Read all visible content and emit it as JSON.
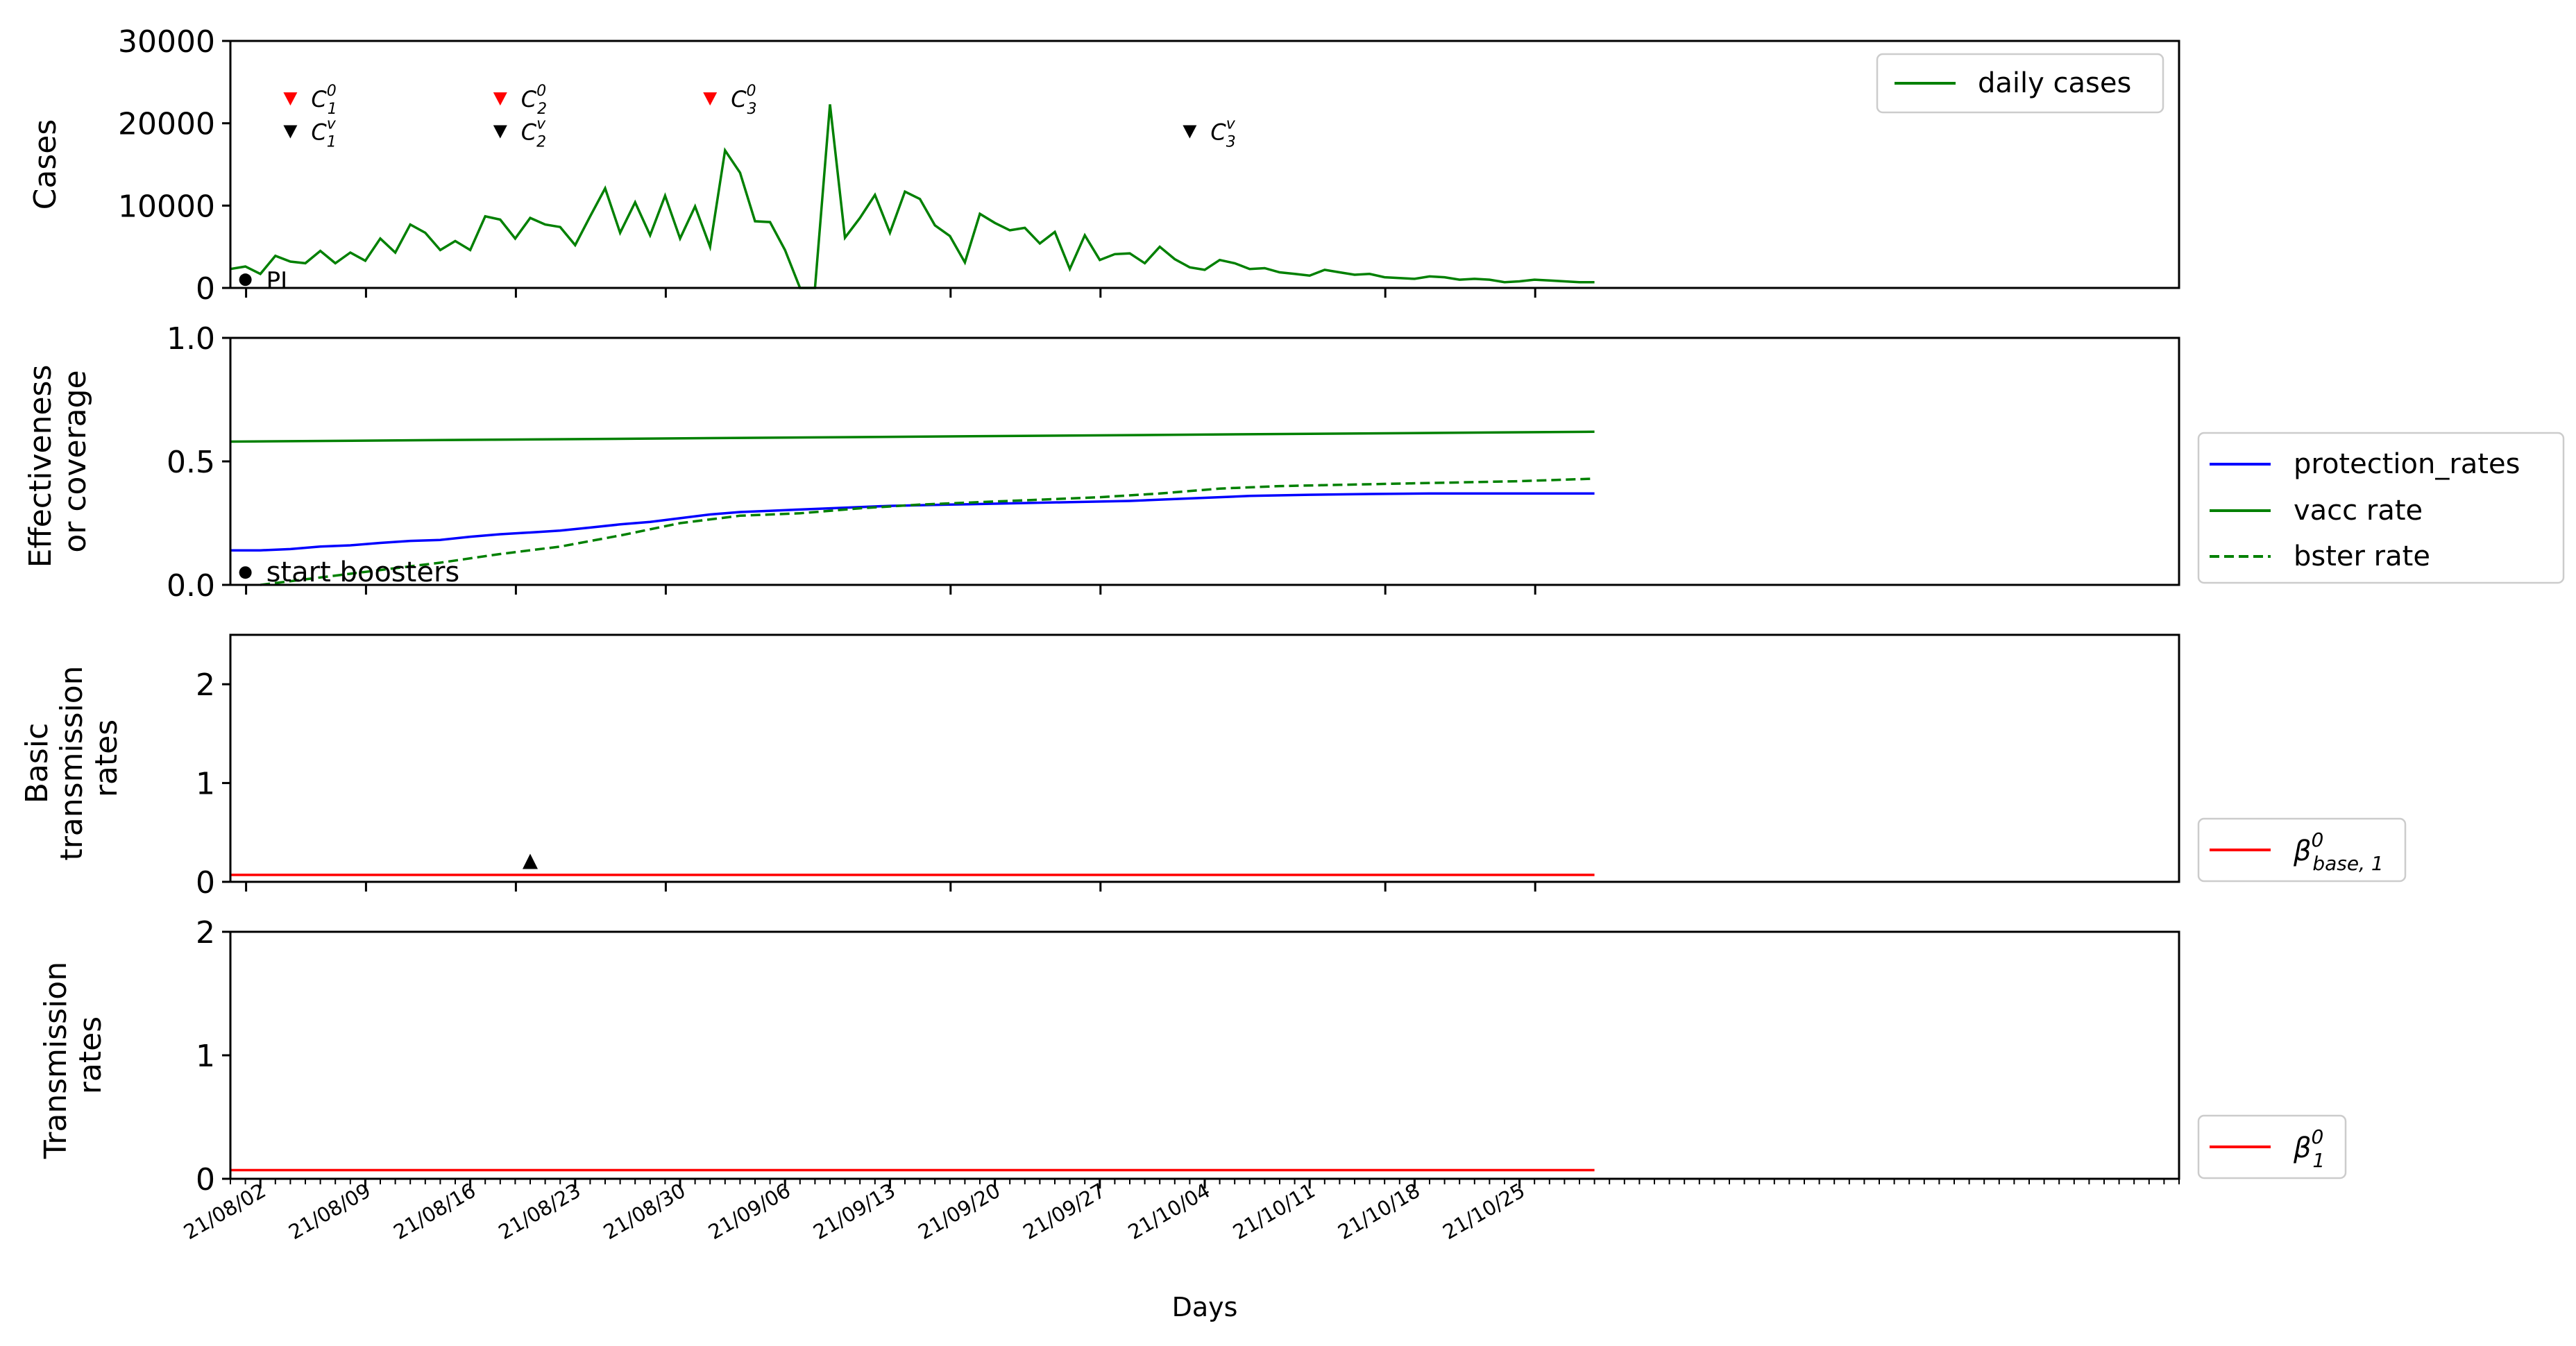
{
  "figure": {
    "xlabel": "Days",
    "x_tick_labels": [
      "21/08/02",
      "21/08/09",
      "21/08/16",
      "21/08/23",
      "21/08/30",
      "21/09/06",
      "21/09/13",
      "21/09/20",
      "21/09/27",
      "21/10/04",
      "21/10/11",
      "21/10/18",
      "21/10/25"
    ]
  },
  "colors": {
    "green": "#008000",
    "blue": "#0000ff",
    "red": "#ff0000",
    "black": "#000000"
  },
  "chart_data": [
    {
      "type": "line",
      "ylabel": "Cases",
      "ylim": [
        0,
        30000
      ],
      "yticks": [
        "0",
        "10000",
        "20000",
        "30000"
      ],
      "x_start": "2021-07-31",
      "series": [
        {
          "name": "daily cases",
          "color": "#008000",
          "values": [
            2300,
            2600,
            1700,
            3900,
            3200,
            3000,
            4500,
            3000,
            4300,
            3300,
            6000,
            4300,
            7700,
            6700,
            4600,
            5700,
            4600,
            8700,
            8300,
            6000,
            8500,
            7700,
            7400,
            5200,
            8700,
            12100,
            6700,
            10400,
            6400,
            11200,
            6000,
            9900,
            5000,
            16700,
            14000,
            8100,
            8000,
            4600,
            -400,
            -400,
            22300,
            6100,
            8500,
            11300,
            6700,
            11700,
            10800,
            7600,
            6300,
            3100,
            9000,
            7900,
            7000,
            7300,
            5400,
            6800,
            2300,
            6400,
            3400,
            4100,
            4200,
            3000,
            5000,
            3500,
            2500,
            2200,
            3400,
            3000,
            2300,
            2400,
            1900,
            1700,
            1500,
            2200,
            1900,
            1600,
            1700,
            1300,
            1200,
            1100,
            1400,
            1300,
            1000,
            1100,
            1000,
            700,
            800,
            1000,
            900,
            800,
            700,
            700
          ]
        }
      ],
      "legend": {
        "placement": "top-right",
        "entries": [
          "daily cases"
        ]
      },
      "annotations": [
        {
          "label": "PI",
          "x": "2021-08-01",
          "y": 1000,
          "marker": "circle",
          "color": "#000000"
        },
        {
          "label_base": "C",
          "sup": "0",
          "sub": "1",
          "x": "2021-08-04",
          "y": 23000,
          "marker": "triangle-down",
          "color": "#ff0000"
        },
        {
          "label_base": "C",
          "sup": "v",
          "sub": "1",
          "x": "2021-08-04",
          "y": 19000,
          "marker": "triangle-down",
          "color": "#000000"
        },
        {
          "label_base": "C",
          "sup": "0",
          "sub": "2",
          "x": "2021-08-18",
          "y": 23000,
          "marker": "triangle-down",
          "color": "#ff0000"
        },
        {
          "label_base": "C",
          "sup": "v",
          "sub": "2",
          "x": "2021-08-18",
          "y": 19000,
          "marker": "triangle-down",
          "color": "#000000"
        },
        {
          "label_base": "C",
          "sup": "0",
          "sub": "3",
          "x": "2021-09-01",
          "y": 23000,
          "marker": "triangle-down",
          "color": "#ff0000"
        },
        {
          "label_base": "C",
          "sup": "v",
          "sub": "3",
          "x": "2021-10-03",
          "y": 19000,
          "marker": "triangle-down",
          "color": "#000000"
        }
      ]
    },
    {
      "type": "line",
      "ylabel": "Effectiveness or coverage",
      "ylabel_lines": [
        "Effectiveness",
        "or coverage"
      ],
      "ylim": [
        0,
        1.0
      ],
      "yticks": [
        "0.0",
        "0.5",
        "1.0"
      ],
      "x_start": "2021-07-31",
      "series": [
        {
          "name": "protection_rates",
          "color": "#0000ff",
          "style": "solid",
          "x_days": [
            0,
            2,
            4,
            6,
            8,
            10,
            12,
            14,
            16,
            18,
            20,
            22,
            24,
            26,
            28,
            30,
            32,
            34,
            36,
            38,
            40,
            44,
            48,
            52,
            56,
            60,
            64,
            68,
            72,
            76,
            80,
            84,
            88,
            91
          ],
          "values": [
            0.14,
            0.14,
            0.145,
            0.155,
            0.16,
            0.17,
            0.178,
            0.182,
            0.195,
            0.205,
            0.212,
            0.22,
            0.232,
            0.245,
            0.255,
            0.27,
            0.285,
            0.295,
            0.3,
            0.305,
            0.31,
            0.32,
            0.325,
            0.33,
            0.335,
            0.34,
            0.35,
            0.36,
            0.365,
            0.368,
            0.37,
            0.37,
            0.37,
            0.37
          ]
        },
        {
          "name": "vacc rate",
          "color": "#008000",
          "style": "solid",
          "x_days": [
            0,
            91
          ],
          "values": [
            0.58,
            0.62
          ]
        },
        {
          "name": "bster rate",
          "color": "#008000",
          "style": "dashed",
          "x_days": [
            2,
            6,
            10,
            14,
            18,
            22,
            26,
            30,
            34,
            38,
            42,
            46,
            50,
            54,
            58,
            62,
            66,
            70,
            74,
            78,
            82,
            86,
            91
          ],
          "values": [
            0.0,
            0.03,
            0.06,
            0.09,
            0.125,
            0.155,
            0.2,
            0.25,
            0.28,
            0.29,
            0.31,
            0.325,
            0.335,
            0.345,
            0.355,
            0.37,
            0.39,
            0.4,
            0.405,
            0.41,
            0.415,
            0.42,
            0.43
          ]
        }
      ],
      "legend": {
        "placement": "outside-right",
        "entries": [
          "protection_rates",
          "vacc rate",
          "bster rate"
        ]
      },
      "annotations": [
        {
          "label": "start boosters",
          "x": "2021-08-01",
          "y": 0.05,
          "marker": "circle",
          "color": "#000000"
        }
      ]
    },
    {
      "type": "line",
      "ylabel": "Basic transmission rates",
      "ylabel_lines": [
        "Basic",
        "transmission",
        "rates"
      ],
      "ylim": [
        0,
        2.5
      ],
      "yticks": [
        "0",
        "1",
        "2"
      ],
      "x_start": "2021-07-31",
      "series": [
        {
          "name_base": "β",
          "sup": "0",
          "sub": "base, 1",
          "color": "#ff0000",
          "x_days": [
            0,
            91
          ],
          "values": [
            0.07,
            0.07
          ]
        }
      ],
      "legend": {
        "placement": "outside-right"
      },
      "annotations": [
        {
          "x": "2021-08-20",
          "y": 0.2,
          "marker": "triangle-up",
          "color": "#000000"
        }
      ]
    },
    {
      "type": "line",
      "ylabel": "Transmission rates",
      "ylabel_lines": [
        "Transmission",
        "rates"
      ],
      "ylim": [
        0,
        2.0
      ],
      "yticks": [
        "0",
        "1",
        "2"
      ],
      "x_start": "2021-07-31",
      "series": [
        {
          "name_base": "β",
          "sup": "0",
          "sub": "1",
          "color": "#ff0000",
          "x_days": [
            0,
            91
          ],
          "values": [
            0.07,
            0.07
          ]
        }
      ],
      "legend": {
        "placement": "outside-right"
      }
    }
  ]
}
